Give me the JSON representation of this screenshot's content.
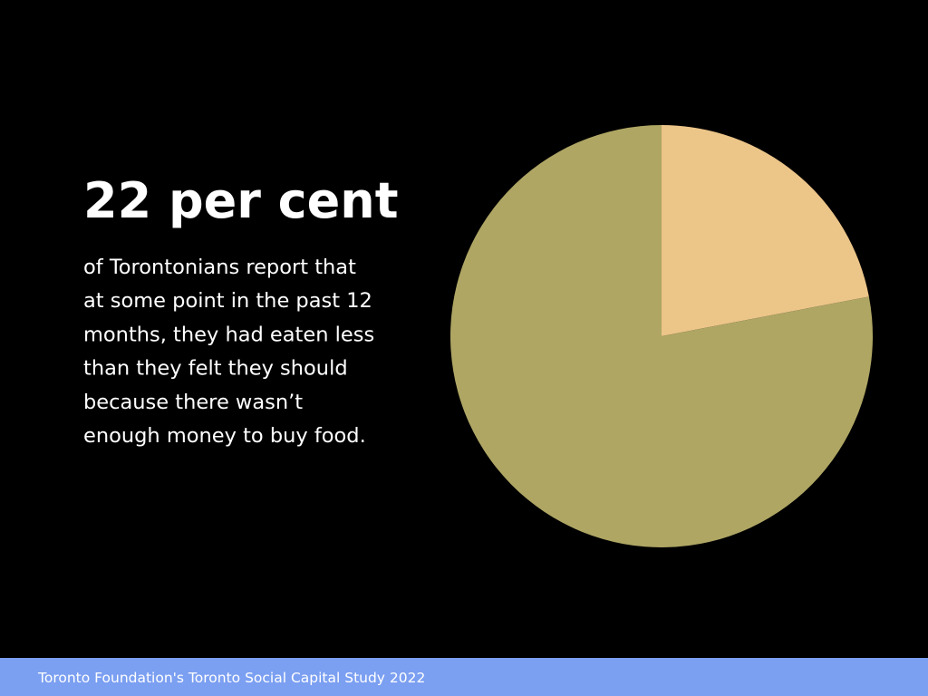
{
  "chart_data": {
    "type": "pie",
    "title": "22 per cent",
    "subtitle_lines": [
      "of Torontonians report that",
      "at some point in the past 12",
      "months, they had eaten less",
      "than they felt they should",
      "because there wasn’t",
      "enough money to buy food."
    ],
    "categories": [
      null,
      null
    ],
    "values": [
      22,
      78
    ],
    "colors": [
      "#ecc589",
      "#afa664"
    ],
    "source": "Toronto Foundation's Toronto Social Capital Study 2022"
  }
}
